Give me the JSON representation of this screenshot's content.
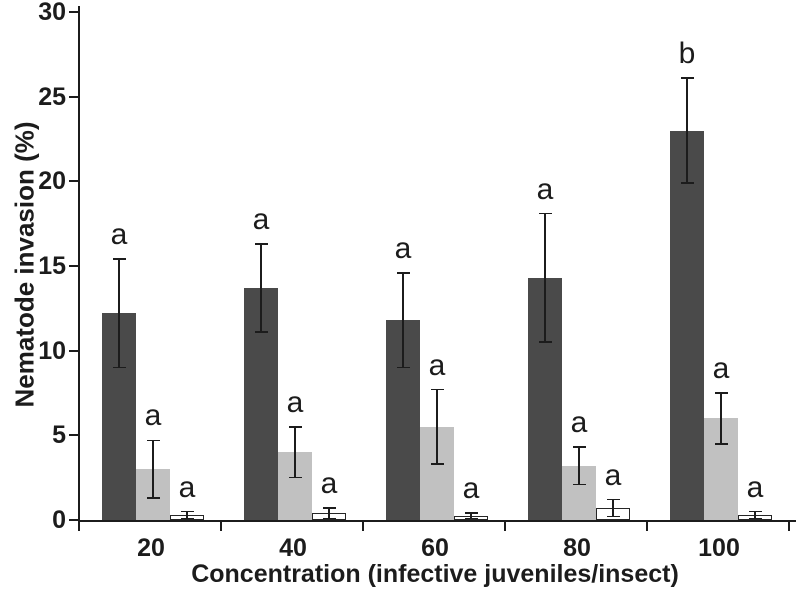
{
  "figure": {
    "background": "#ffffff",
    "axis_color": "#1c1c1c",
    "error_bar_color": "#1c1c1c"
  },
  "chart_data": {
    "type": "bar",
    "title": "",
    "xlabel": "Concentration (infective juveniles/insect)",
    "ylabel": "Nematode invasion (%)",
    "categories": [
      "20",
      "40",
      "60",
      "80",
      "100"
    ],
    "yticks": [
      0,
      5,
      10,
      15,
      20,
      25,
      30
    ],
    "ylim": [
      0,
      30
    ],
    "grid": false,
    "legend": "none",
    "error_bars": true,
    "series": [
      {
        "name": "dark-gray",
        "color": "#4a4a4a",
        "border_color": "#4a4a4a",
        "values": [
          12.2,
          13.7,
          11.8,
          14.3,
          23.0
        ],
        "errors": [
          3.2,
          2.6,
          2.8,
          3.8,
          3.1
        ],
        "letters": [
          "a",
          "a",
          "a",
          "a",
          "b"
        ]
      },
      {
        "name": "light-gray",
        "color": "#c1c1c1",
        "border_color": "#c1c1c1",
        "values": [
          3.0,
          4.0,
          5.5,
          3.2,
          6.0
        ],
        "errors": [
          1.7,
          1.5,
          2.2,
          1.1,
          1.5
        ],
        "letters": [
          "a",
          "a",
          "a",
          "a",
          "a"
        ]
      },
      {
        "name": "white",
        "color": "#ffffff",
        "border_color": "#262626",
        "values": [
          0.3,
          0.4,
          0.25,
          0.7,
          0.3
        ],
        "errors": [
          0.2,
          0.3,
          0.15,
          0.5,
          0.2
        ],
        "letters": [
          "a",
          "a",
          "a",
          "a",
          "a"
        ]
      }
    ]
  }
}
